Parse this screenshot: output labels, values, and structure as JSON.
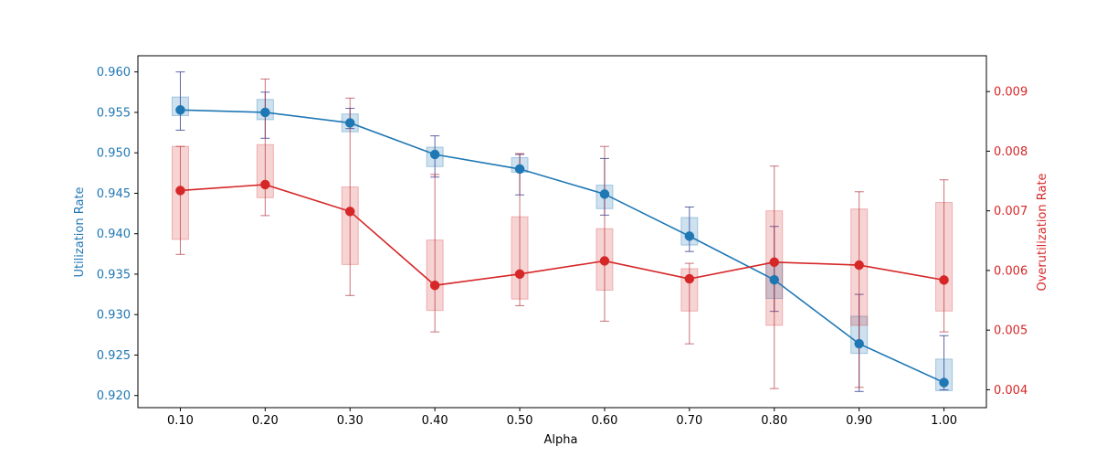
{
  "chart_data": {
    "type": "line",
    "title": "",
    "xlabel": "Alpha",
    "ylabel_left": "Utilization Rate",
    "ylabel_right": "Overutilization Rate",
    "x": [
      0.1,
      0.2,
      0.3,
      0.4,
      0.5,
      0.6,
      0.7,
      0.8,
      0.9,
      1.0
    ],
    "x_tick_labels": [
      "0.10",
      "0.20",
      "0.30",
      "0.40",
      "0.50",
      "0.60",
      "0.70",
      "0.80",
      "0.90",
      "1.00"
    ],
    "ylim_left": [
      0.9185,
      0.962
    ],
    "ylim_right": [
      0.0037,
      0.0096
    ],
    "yticks_left": [
      0.92,
      0.925,
      0.93,
      0.935,
      0.94,
      0.945,
      0.95,
      0.955,
      0.96
    ],
    "ytick_labels_left": [
      "0.920",
      "0.925",
      "0.930",
      "0.935",
      "0.940",
      "0.945",
      "0.950",
      "0.955",
      "0.960"
    ],
    "yticks_right": [
      0.004,
      0.005,
      0.006,
      0.007,
      0.008,
      0.009
    ],
    "ytick_labels_right": [
      "0.004",
      "0.005",
      "0.006",
      "0.007",
      "0.008",
      "0.009"
    ],
    "grid": false,
    "series": [
      {
        "name": "Utilization Rate",
        "axis": "left",
        "color": "#1f77b4",
        "values": [
          0.9553,
          0.955,
          0.9537,
          0.9498,
          0.948,
          0.9449,
          0.9397,
          0.9343,
          0.9264,
          0.9216
        ],
        "box_q1": [
          0.9546,
          0.9541,
          0.9526,
          0.9483,
          0.9476,
          0.9431,
          0.9386,
          0.932,
          0.9252,
          0.9206
        ],
        "box_q3": [
          0.9569,
          0.9566,
          0.9548,
          0.9507,
          0.9494,
          0.946,
          0.942,
          0.9364,
          0.9298,
          0.9245
        ],
        "whisker_low": [
          0.9528,
          0.9518,
          0.953,
          0.947,
          0.9448,
          0.9423,
          0.9378,
          0.9304,
          0.9205,
          0.9207
        ],
        "whisker_high": [
          0.96,
          0.9575,
          0.9555,
          0.9521,
          0.9498,
          0.9493,
          0.9433,
          0.9409,
          0.9325,
          0.9274
        ]
      },
      {
        "name": "Overutilization Rate",
        "axis": "right",
        "color": "#d62728",
        "values": [
          0.00734,
          0.00744,
          0.00699,
          0.00575,
          0.00594,
          0.00616,
          0.00586,
          0.00614,
          0.00609,
          0.00584
        ],
        "box_q1": [
          0.00652,
          0.00722,
          0.0061,
          0.00533,
          0.00552,
          0.00567,
          0.00532,
          0.00508,
          0.00508,
          0.00532
        ],
        "box_q3": [
          0.00808,
          0.00811,
          0.0074,
          0.00651,
          0.0069,
          0.0067,
          0.00603,
          0.007,
          0.00703,
          0.00714
        ],
        "whisker_low": [
          0.00627,
          0.00692,
          0.00558,
          0.00497,
          0.00541,
          0.00515,
          0.00477,
          0.00402,
          0.00404,
          0.00497
        ],
        "whisker_high": [
          0.00808,
          0.00921,
          0.00889,
          0.00761,
          0.00796,
          0.00808,
          0.00612,
          0.00775,
          0.00732,
          0.00752
        ]
      }
    ]
  }
}
